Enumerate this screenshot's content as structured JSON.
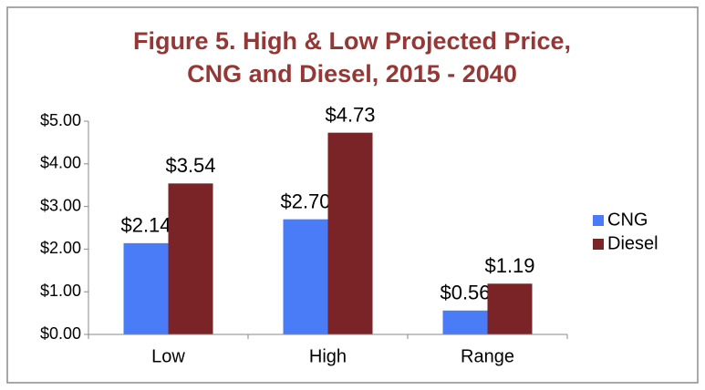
{
  "chart_data": {
    "type": "bar",
    "title": [
      "Figure 5. High & Low Projected Price,",
      "CNG and Diesel, 2015 - 2040"
    ],
    "categories": [
      "Low",
      "High",
      "Range"
    ],
    "series": [
      {
        "name": "CNG",
        "color": "#4a7cf7",
        "values": [
          2.14,
          2.7,
          0.56
        ],
        "value_labels": [
          "$2.14",
          "$2.70",
          "$0.56"
        ]
      },
      {
        "name": "Diesel",
        "color": "#7b2427",
        "values": [
          3.54,
          4.73,
          1.19
        ],
        "value_labels": [
          "$3.54",
          "$4.73",
          "$1.19"
        ]
      }
    ],
    "ylim": [
      0,
      5
    ],
    "yticks": [
      {
        "value": 0,
        "label": "$0.00"
      },
      {
        "value": 1,
        "label": "$1.00"
      },
      {
        "value": 2,
        "label": "$2.00"
      },
      {
        "value": 3,
        "label": "$3.00"
      },
      {
        "value": 4,
        "label": "$4.00"
      },
      {
        "value": 5,
        "label": "$5.00"
      }
    ],
    "legend": "right"
  }
}
